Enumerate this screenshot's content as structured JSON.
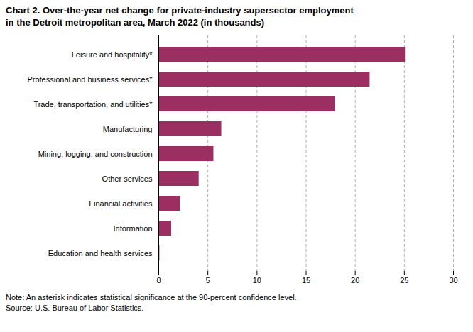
{
  "chart_data": {
    "type": "bar",
    "orientation": "horizontal",
    "title": "Chart 2. Over-the-year net change for private-industry supersector employment",
    "subtitle": "in the Detroit metropolitan area, March 2022 (in thousands)",
    "categories": [
      "Education and health services",
      "Information",
      "Financial activities",
      "Other services",
      "Mining, logging, and construction",
      "Manufacturing",
      "Trade, transportation, and utilities*",
      "Professional and business services*",
      "Leisure and hospitality*"
    ],
    "values": [
      0.1,
      1.3,
      2.2,
      4.1,
      5.6,
      6.4,
      18.0,
      21.5,
      25.1
    ],
    "color": "#9b2f62",
    "xlim": [
      0,
      30
    ],
    "xticks": [
      0,
      5,
      10,
      15,
      20,
      25,
      30
    ],
    "grid": true,
    "annotations": [
      "Note: An asterisk indicates statistical significance at the 90-percent confidence level.",
      "Source: U.S. Bureau of Labor Statistics."
    ]
  }
}
